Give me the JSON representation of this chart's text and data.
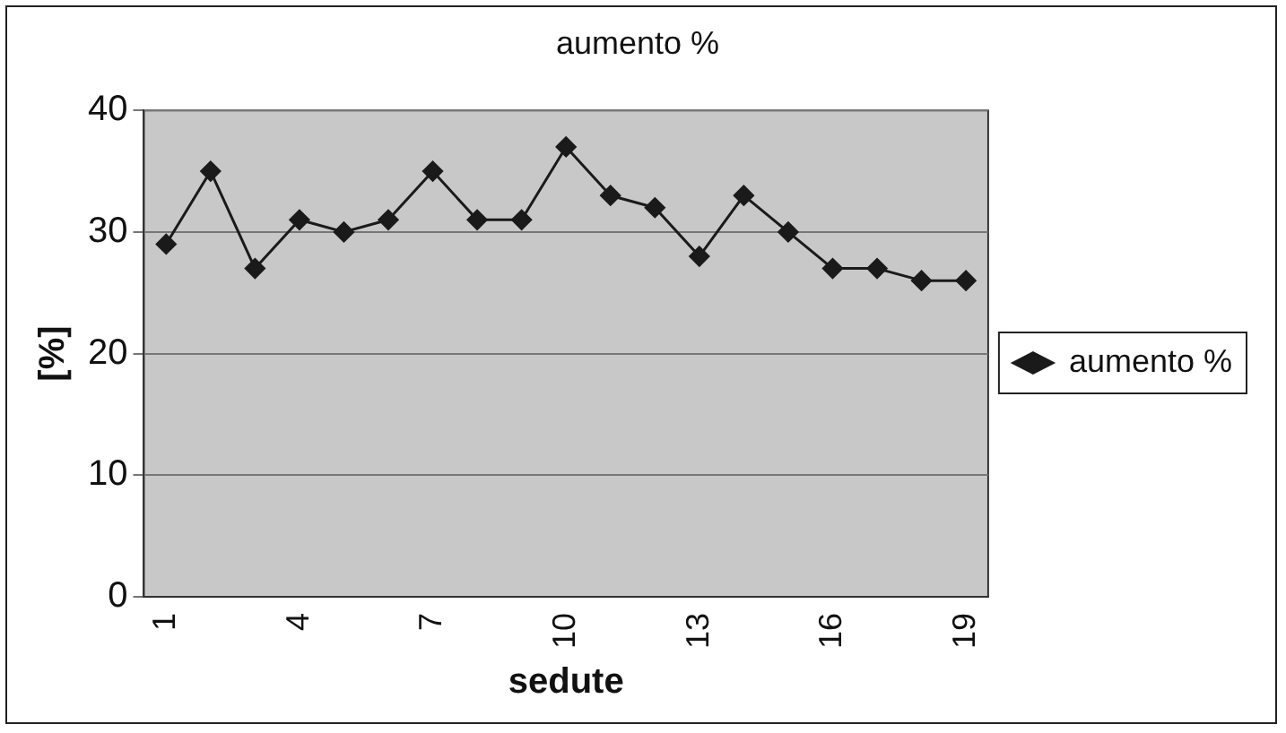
{
  "chart_data": {
    "type": "line",
    "title": "aumento %",
    "xlabel": "sedute",
    "ylabel": "[%]",
    "categories": [
      "1",
      null,
      null,
      "4",
      null,
      null,
      "7",
      null,
      null,
      "10",
      null,
      null,
      "13",
      null,
      null,
      "16",
      null,
      null,
      "19"
    ],
    "series": [
      {
        "name": "aumento %",
        "color": "#1a1a1a",
        "values": [
          29,
          35,
          27,
          31,
          30,
          31,
          35,
          31,
          31,
          37,
          33,
          32,
          28,
          33,
          30,
          27,
          27,
          26,
          26
        ]
      }
    ],
    "ylim": [
      0,
      40
    ],
    "yticks": [
      0,
      10,
      20,
      30,
      40
    ],
    "grid": "y",
    "legend": "right",
    "marker": "diamond",
    "line_style": "solid"
  }
}
